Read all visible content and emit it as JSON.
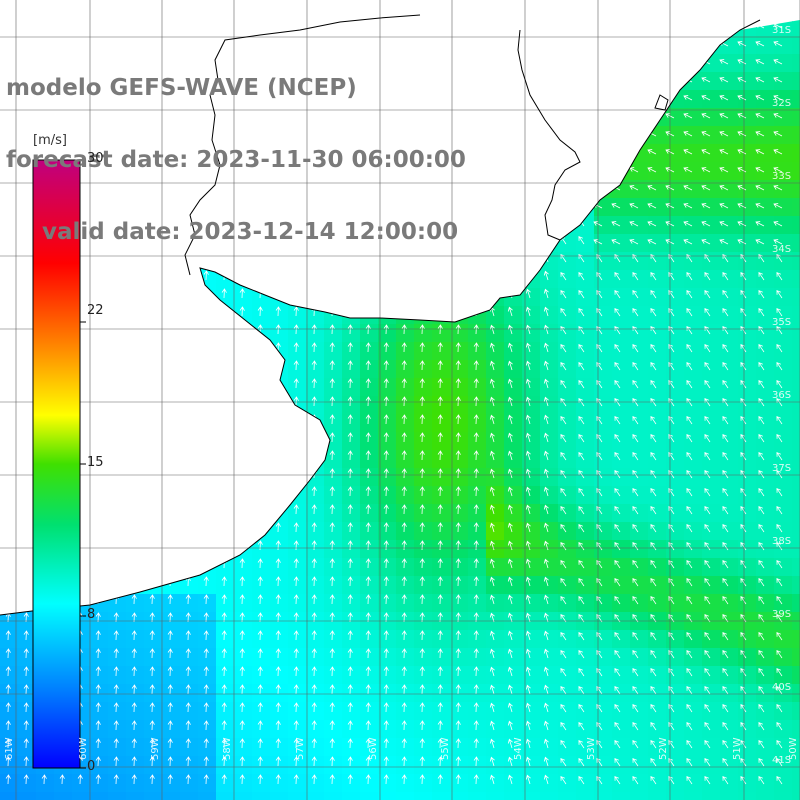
{
  "header": {
    "line1": "modelo GEFS-WAVE (NCEP)",
    "line2": "forecast date: 2023-11-30 06:00:00",
    "line3": "valid date: 2023-12-14 12:00:00"
  },
  "colorbar": {
    "unit": "[m/s]",
    "tick_labels": [
      "30",
      "22",
      "15",
      "8",
      "0"
    ],
    "tick_values": [
      30,
      22,
      15,
      8,
      0
    ],
    "range": [
      0,
      30
    ],
    "colors": [
      "#0000ff",
      "#0090ff",
      "#00e8ff",
      "#00e060",
      "#60e000",
      "#ffff00",
      "#ff9000",
      "#ff2000",
      "#c00090"
    ]
  },
  "map": {
    "longitude_labels": [
      "61W",
      "60W",
      "59W",
      "58W",
      "57W",
      "56W",
      "55W",
      "54W",
      "53W",
      "52W",
      "51W",
      "50W"
    ],
    "latitude_labels": [
      "31S",
      "32S",
      "33S",
      "34S",
      "35S",
      "36S",
      "37S",
      "38S",
      "39S",
      "40S",
      "41S"
    ],
    "land_color": "#ffffff",
    "arrow_color": "#ffffff",
    "grid_color": "#555555"
  }
}
